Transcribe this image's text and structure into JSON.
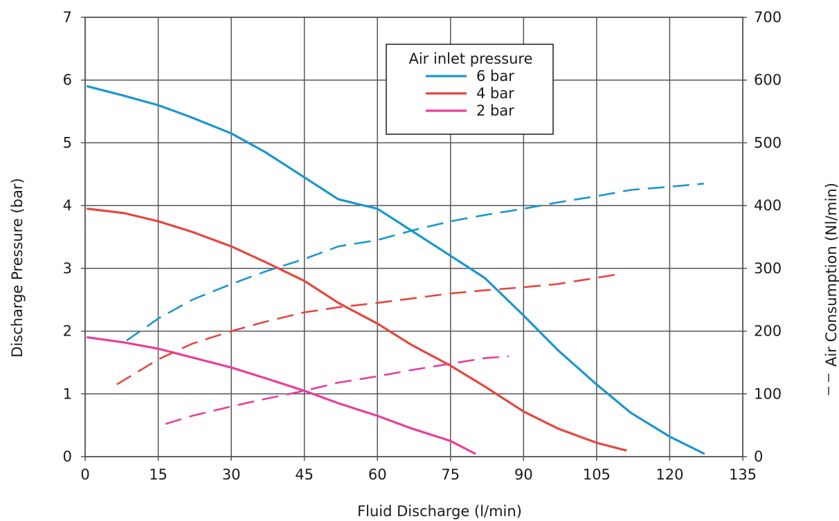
{
  "chart_data": {
    "type": "line",
    "xlabel": "Fluid Discharge (l/min)",
    "ylabel": "Discharge Pressure (bar)",
    "y2label": "Air Consumption (Nl/min)",
    "xlim": [
      0,
      135
    ],
    "ylim": [
      0,
      7
    ],
    "y2lim": [
      0,
      700
    ],
    "xticks": [
      "0",
      "15",
      "30",
      "45",
      "60",
      "75",
      "90",
      "105",
      "120",
      "135"
    ],
    "yticks": [
      "0",
      "1",
      "2",
      "3",
      "4",
      "5",
      "6",
      "7"
    ],
    "y2ticks": [
      "0",
      "100",
      "200",
      "300",
      "400",
      "500",
      "600",
      "700"
    ],
    "grid": true,
    "legend": {
      "title": "Air inlet pressure",
      "placement": "top-center",
      "entries": [
        "6 bar",
        "4 bar",
        "2 bar"
      ]
    },
    "colors": {
      "6 bar": "#1a96cf",
      "4 bar": "#e5463f",
      "2 bar": "#e83e9b"
    },
    "series": [
      {
        "name": "6 bar",
        "axis": "left",
        "style": "solid",
        "points": [
          [
            0.5,
            5.9
          ],
          [
            8,
            5.75
          ],
          [
            15,
            5.6
          ],
          [
            22,
            5.4
          ],
          [
            30,
            5.15
          ],
          [
            37,
            4.85
          ],
          [
            45,
            4.45
          ],
          [
            52,
            4.1
          ],
          [
            60,
            3.95
          ],
          [
            67,
            3.6
          ],
          [
            75,
            3.2
          ],
          [
            82,
            2.85
          ],
          [
            90,
            2.25
          ],
          [
            97,
            1.7
          ],
          [
            105,
            1.15
          ],
          [
            112,
            0.7
          ],
          [
            120,
            0.32
          ],
          [
            127,
            0.05
          ]
        ]
      },
      {
        "name": "4 bar",
        "axis": "left",
        "style": "solid",
        "points": [
          [
            0.5,
            3.95
          ],
          [
            8,
            3.88
          ],
          [
            15,
            3.75
          ],
          [
            22,
            3.58
          ],
          [
            30,
            3.35
          ],
          [
            37,
            3.1
          ],
          [
            45,
            2.8
          ],
          [
            52,
            2.45
          ],
          [
            60,
            2.12
          ],
          [
            67,
            1.78
          ],
          [
            75,
            1.45
          ],
          [
            82,
            1.12
          ],
          [
            90,
            0.72
          ],
          [
            97,
            0.45
          ],
          [
            105,
            0.22
          ],
          [
            111,
            0.1
          ]
        ]
      },
      {
        "name": "2 bar",
        "axis": "left",
        "style": "solid",
        "points": [
          [
            0.5,
            1.9
          ],
          [
            8,
            1.82
          ],
          [
            15,
            1.72
          ],
          [
            22,
            1.58
          ],
          [
            30,
            1.42
          ],
          [
            37,
            1.25
          ],
          [
            45,
            1.05
          ],
          [
            52,
            0.85
          ],
          [
            60,
            0.65
          ],
          [
            67,
            0.45
          ],
          [
            75,
            0.25
          ],
          [
            80,
            0.05
          ]
        ]
      },
      {
        "name": "6 bar",
        "axis": "right",
        "style": "dashed",
        "points": [
          [
            8.5,
            185
          ],
          [
            15,
            220
          ],
          [
            22,
            250
          ],
          [
            30,
            275
          ],
          [
            37,
            295
          ],
          [
            45,
            315
          ],
          [
            52,
            335
          ],
          [
            60,
            345
          ],
          [
            67,
            360
          ],
          [
            75,
            375
          ],
          [
            82,
            385
          ],
          [
            90,
            395
          ],
          [
            97,
            405
          ],
          [
            105,
            415
          ],
          [
            112,
            425
          ],
          [
            120,
            430
          ],
          [
            127,
            435
          ]
        ]
      },
      {
        "name": "4 bar",
        "axis": "right",
        "style": "dashed",
        "points": [
          [
            6.5,
            115
          ],
          [
            15,
            155
          ],
          [
            22,
            180
          ],
          [
            30,
            200
          ],
          [
            37,
            215
          ],
          [
            45,
            230
          ],
          [
            52,
            238
          ],
          [
            60,
            245
          ],
          [
            67,
            252
          ],
          [
            75,
            260
          ],
          [
            82,
            265
          ],
          [
            90,
            270
          ],
          [
            97,
            275
          ],
          [
            105,
            285
          ],
          [
            109,
            290
          ]
        ]
      },
      {
        "name": "2 bar",
        "axis": "right",
        "style": "dashed",
        "points": [
          [
            16.5,
            52
          ],
          [
            22,
            65
          ],
          [
            30,
            80
          ],
          [
            37,
            92
          ],
          [
            45,
            105
          ],
          [
            52,
            118
          ],
          [
            60,
            128
          ],
          [
            67,
            138
          ],
          [
            75,
            148
          ],
          [
            82,
            157
          ],
          [
            87,
            160
          ]
        ]
      }
    ]
  }
}
